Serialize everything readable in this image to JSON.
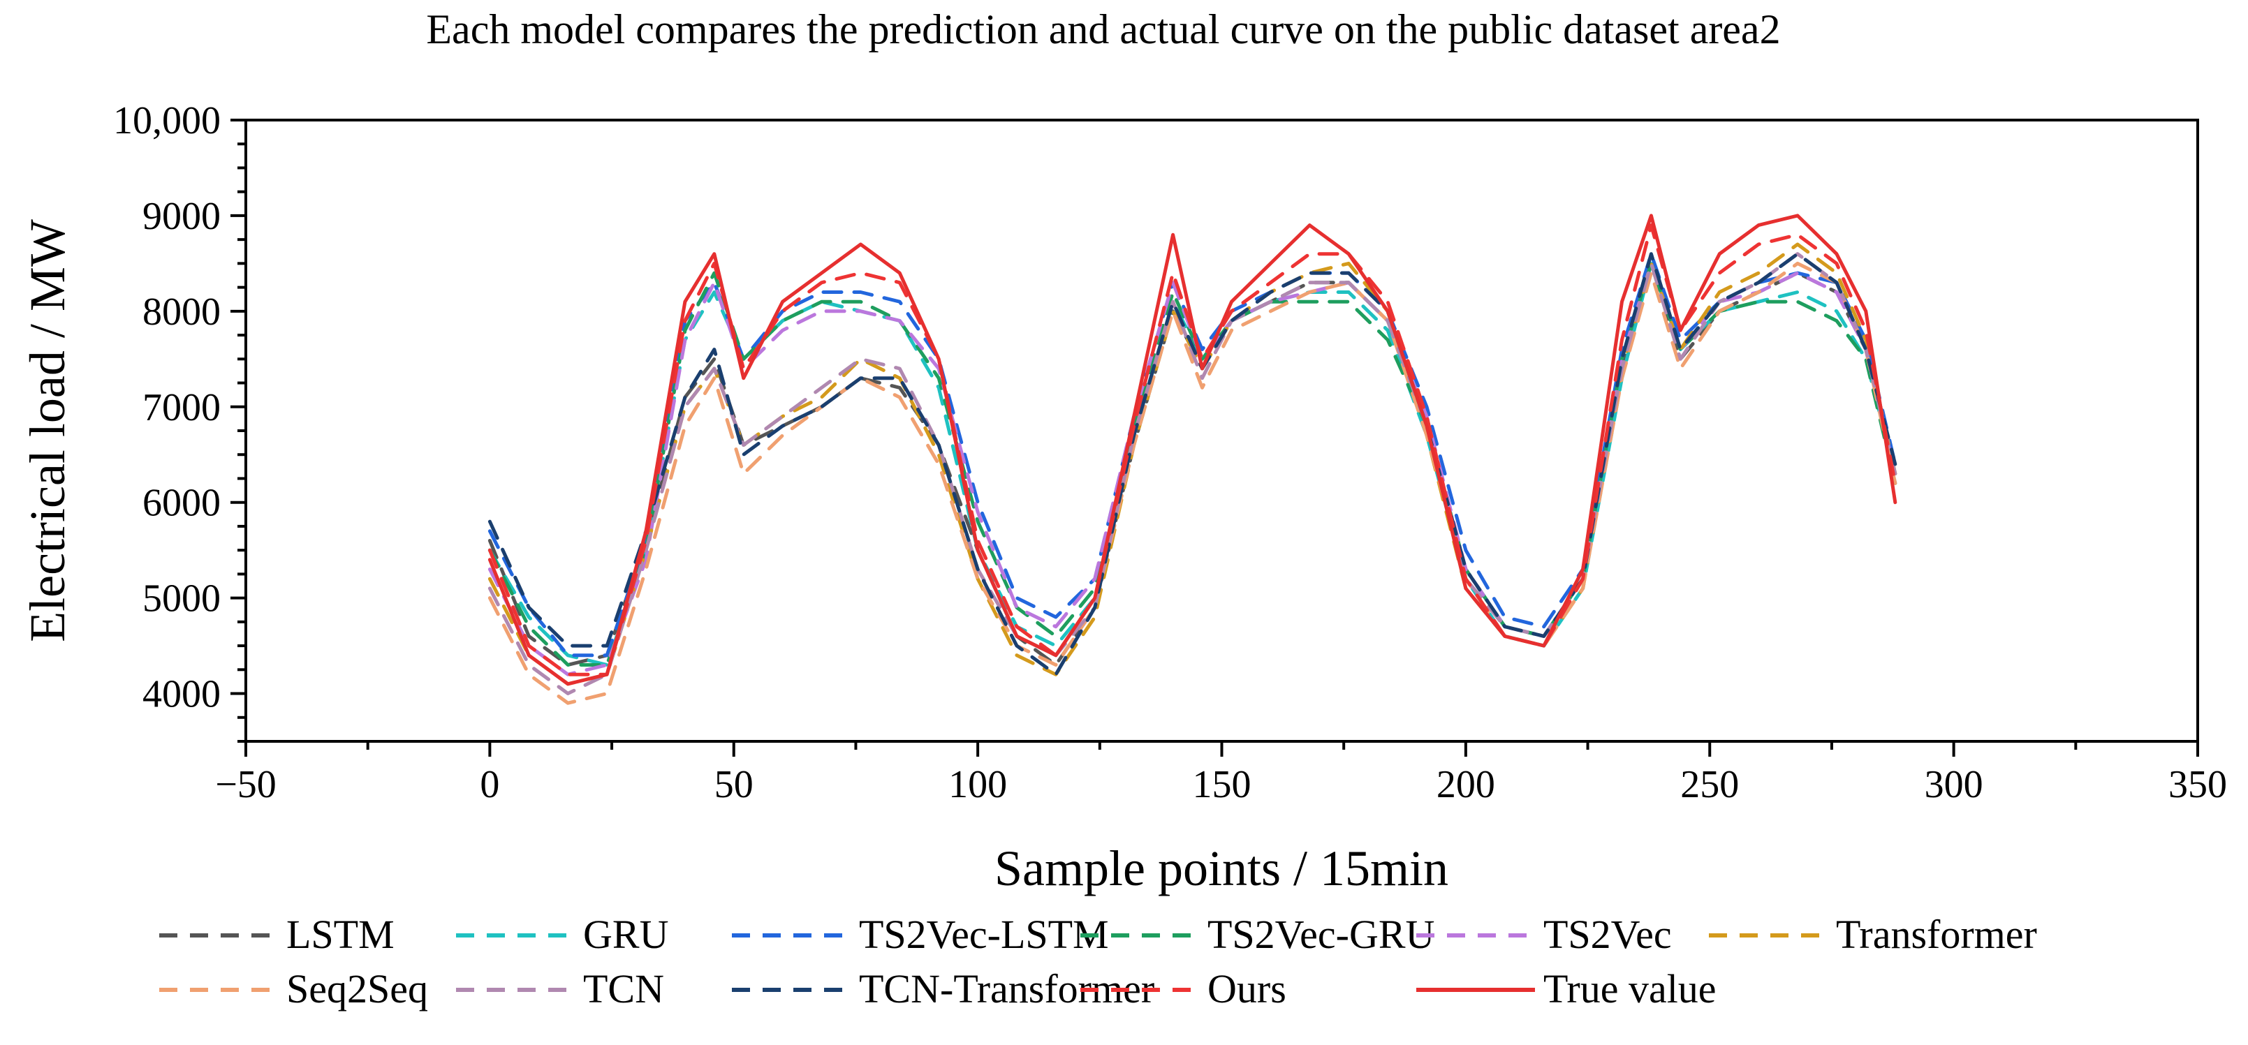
{
  "chart_data": {
    "type": "line",
    "title": "Each model compares the prediction and actual curve on the public dataset area2",
    "xlabel": "Sample points / 15min",
    "ylabel": "Electrical load / MW",
    "xlim": [
      -50,
      350
    ],
    "ylim": [
      3500,
      10000
    ],
    "xticks": [
      -50,
      0,
      50,
      100,
      150,
      200,
      250,
      300,
      350
    ],
    "xtick_labels": [
      "−50",
      "0",
      "50",
      "100",
      "150",
      "200",
      "250",
      "300",
      "350"
    ],
    "yticks": [
      4000,
      5000,
      6000,
      7000,
      8000,
      9000,
      10000
    ],
    "ytick_labels": [
      "4000",
      "5000",
      "6000",
      "7000",
      "8000",
      "9000",
      "10,000"
    ],
    "x_points": [
      0,
      8,
      16,
      24,
      32,
      40,
      46,
      52,
      60,
      68,
      76,
      84,
      92,
      100,
      108,
      116,
      124,
      132,
      140,
      146,
      152,
      160,
      168,
      176,
      184,
      192,
      200,
      208,
      216,
      224,
      232,
      238,
      244,
      252,
      260,
      268,
      276,
      282,
      288
    ],
    "legend_position": "bottom",
    "legend_ncols": 6,
    "series": [
      {
        "name": "LSTM",
        "color": "#555555",
        "style": "dashed",
        "values": [
          5600,
          4600,
          4300,
          4400,
          5600,
          7100,
          7500,
          6600,
          6800,
          7000,
          7300,
          7200,
          6600,
          5500,
          4600,
          4300,
          4900,
          6600,
          8000,
          7400,
          7900,
          8100,
          8300,
          8300,
          7900,
          6800,
          5300,
          4700,
          4600,
          5200,
          7400,
          8500,
          7500,
          8000,
          8200,
          8400,
          8200,
          7600,
          6300
        ]
      },
      {
        "name": "GRU",
        "color": "#1fc1c1",
        "style": "dashed",
        "values": [
          5500,
          4800,
          4400,
          4300,
          5500,
          7700,
          8200,
          7500,
          7900,
          8100,
          8000,
          7900,
          7200,
          5500,
          4700,
          4500,
          5000,
          6700,
          8100,
          7500,
          7900,
          8100,
          8200,
          8200,
          7800,
          6700,
          5200,
          4600,
          4500,
          5100,
          7300,
          8500,
          7600,
          8000,
          8100,
          8200,
          8000,
          7500,
          6300
        ]
      },
      {
        "name": "TS2Vec-LSTM",
        "color": "#2266dd",
        "style": "dashed",
        "values": [
          5700,
          4900,
          4400,
          4400,
          5600,
          7900,
          8300,
          7500,
          8000,
          8200,
          8200,
          8100,
          7500,
          6000,
          5000,
          4800,
          5200,
          6900,
          8300,
          7600,
          8000,
          8200,
          8400,
          8400,
          8000,
          7000,
          5500,
          4800,
          4700,
          5300,
          7600,
          8600,
          7700,
          8100,
          8300,
          8400,
          8300,
          7700,
          6400
        ]
      },
      {
        "name": "TS2Vec-GRU",
        "color": "#1e9e5e",
        "style": "dashed",
        "values": [
          5500,
          4700,
          4300,
          4300,
          5500,
          7800,
          8400,
          7500,
          7900,
          8100,
          8100,
          7900,
          7300,
          5800,
          4900,
          4600,
          5100,
          6800,
          8200,
          7500,
          7900,
          8100,
          8100,
          8100,
          7700,
          6800,
          5300,
          4700,
          4600,
          5200,
          7500,
          8500,
          7600,
          8000,
          8100,
          8100,
          7900,
          7500,
          6200
        ]
      },
      {
        "name": "TS2Vec",
        "color": "#bb77dd",
        "style": "dashed",
        "values": [
          5300,
          4500,
          4200,
          4300,
          5400,
          7700,
          8300,
          7400,
          7800,
          8000,
          8000,
          7900,
          7400,
          5900,
          4900,
          4700,
          5200,
          6900,
          8300,
          7500,
          7900,
          8100,
          8200,
          8300,
          7900,
          6900,
          5300,
          4700,
          4600,
          5200,
          7500,
          8500,
          7600,
          8100,
          8200,
          8400,
          8200,
          7600,
          6300
        ]
      },
      {
        "name": "Transformer",
        "color": "#d49a1c",
        "style": "dashed",
        "values": [
          5200,
          4400,
          4100,
          4200,
          5500,
          7000,
          7400,
          6600,
          6900,
          7100,
          7500,
          7300,
          6500,
          5200,
          4400,
          4200,
          4800,
          6600,
          8000,
          7400,
          7900,
          8200,
          8400,
          8500,
          8000,
          6700,
          5100,
          4600,
          4500,
          5100,
          7400,
          8500,
          7600,
          8200,
          8400,
          8700,
          8400,
          7700,
          6300
        ]
      },
      {
        "name": "Seq2Seq",
        "color": "#f0a070",
        "style": "dashed",
        "values": [
          5000,
          4200,
          3900,
          4000,
          5300,
          6800,
          7300,
          6300,
          6700,
          7000,
          7300,
          7100,
          6400,
          5200,
          4500,
          4300,
          4900,
          6600,
          8000,
          7200,
          7800,
          8000,
          8200,
          8300,
          7900,
          6700,
          5200,
          4600,
          4500,
          5100,
          7300,
          8400,
          7400,
          8000,
          8200,
          8500,
          8300,
          7600,
          6200
        ]
      },
      {
        "name": "TCN",
        "color": "#b088b0",
        "style": "dashed",
        "values": [
          5100,
          4300,
          4000,
          4200,
          5500,
          7000,
          7400,
          6600,
          6900,
          7200,
          7500,
          7400,
          6600,
          5300,
          4600,
          4400,
          4900,
          6700,
          8100,
          7300,
          7900,
          8100,
          8300,
          8300,
          7900,
          6800,
          5200,
          4700,
          4600,
          5200,
          7400,
          8500,
          7500,
          8100,
          8300,
          8600,
          8300,
          7600,
          6300
        ]
      },
      {
        "name": "TCN-Transformer",
        "color": "#1a3f6f",
        "style": "dashed",
        "values": [
          5800,
          4900,
          4500,
          4500,
          5700,
          7100,
          7600,
          6500,
          6800,
          7000,
          7300,
          7300,
          6600,
          5300,
          4500,
          4200,
          4900,
          6700,
          8100,
          7400,
          7900,
          8200,
          8400,
          8400,
          8000,
          6800,
          5300,
          4700,
          4600,
          5200,
          7500,
          8600,
          7600,
          8100,
          8300,
          8600,
          8300,
          7600,
          6400
        ]
      },
      {
        "name": "Ours",
        "color": "#ee3333",
        "style": "dashed",
        "values": [
          5500,
          4500,
          4200,
          4200,
          5600,
          7900,
          8500,
          7400,
          8000,
          8300,
          8400,
          8300,
          7500,
          5600,
          4700,
          4400,
          5000,
          6800,
          8400,
          7500,
          8000,
          8300,
          8600,
          8600,
          8100,
          6900,
          5200,
          4600,
          4500,
          5200,
          7700,
          8900,
          7800,
          8400,
          8700,
          8800,
          8500,
          7800,
          6200
        ]
      },
      {
        "name": "True value",
        "color": "#e62f2f",
        "style": "solid",
        "values": [
          5400,
          4400,
          4100,
          4200,
          5700,
          8100,
          8600,
          7300,
          8100,
          8400,
          8700,
          8400,
          7500,
          5500,
          4600,
          4400,
          5000,
          6900,
          8800,
          7400,
          8100,
          8500,
          8900,
          8600,
          8000,
          6800,
          5100,
          4600,
          4500,
          5300,
          8100,
          9000,
          7800,
          8600,
          8900,
          9000,
          8600,
          8000,
          6000
        ]
      }
    ]
  }
}
